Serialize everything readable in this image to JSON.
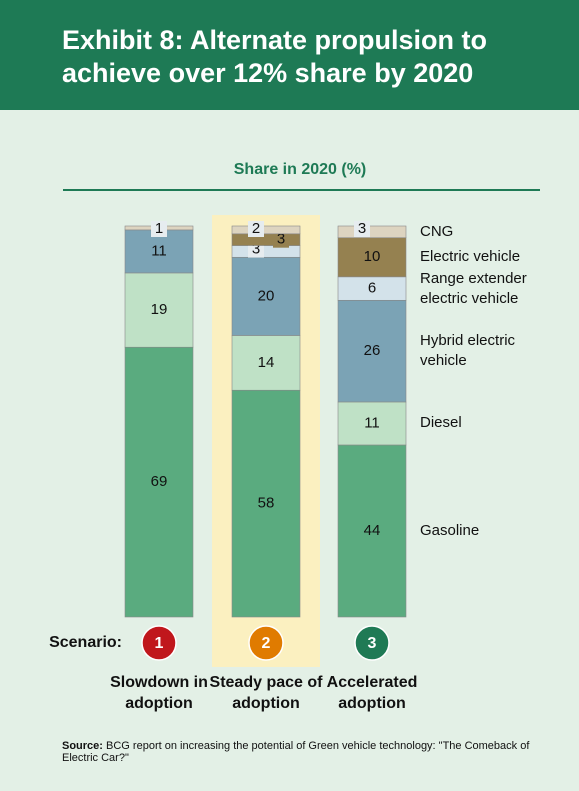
{
  "chart_data": {
    "type": "stacked_bar",
    "title": "Exhibit 8: Alternate propulsion to achieve over 12% share by 2020",
    "subtitle": "Share in 2020 (%)",
    "scenario_label": "Scenario:",
    "markers": [
      "1",
      "2",
      "3"
    ],
    "marker_colors": [
      "#c0171c",
      "#e07b00",
      "#1f7a55"
    ],
    "categories": [
      "Slowdown in adoption",
      "Steady pace of adoption",
      "Accelerated adoption"
    ],
    "highlight": 1,
    "ylim": [
      0,
      100
    ],
    "series": [
      {
        "name": "Gasoline",
        "color": "#5aab7f",
        "values": [
          69,
          58,
          44
        ]
      },
      {
        "name": "Diesel",
        "color": "#bfe1c6",
        "values": [
          19,
          14,
          11
        ]
      },
      {
        "name": "Hybrid electric vehicle",
        "color": "#7ba3b5",
        "values": [
          11,
          20,
          26
        ]
      },
      {
        "name": "Range extender electric vehicle",
        "color": "#d3e2ea",
        "values": [
          null,
          3,
          6
        ]
      },
      {
        "name": "Electric vehicle",
        "color": "#958150",
        "values": [
          null,
          3,
          10
        ]
      },
      {
        "name": "CNG",
        "color": "#ddd4c0",
        "values": [
          1,
          2,
          3
        ]
      }
    ],
    "source_label": "Source:",
    "source": "BCG report on increasing the potential of Green vehicle technology: \"The Comeback of Electric Car?\""
  }
}
